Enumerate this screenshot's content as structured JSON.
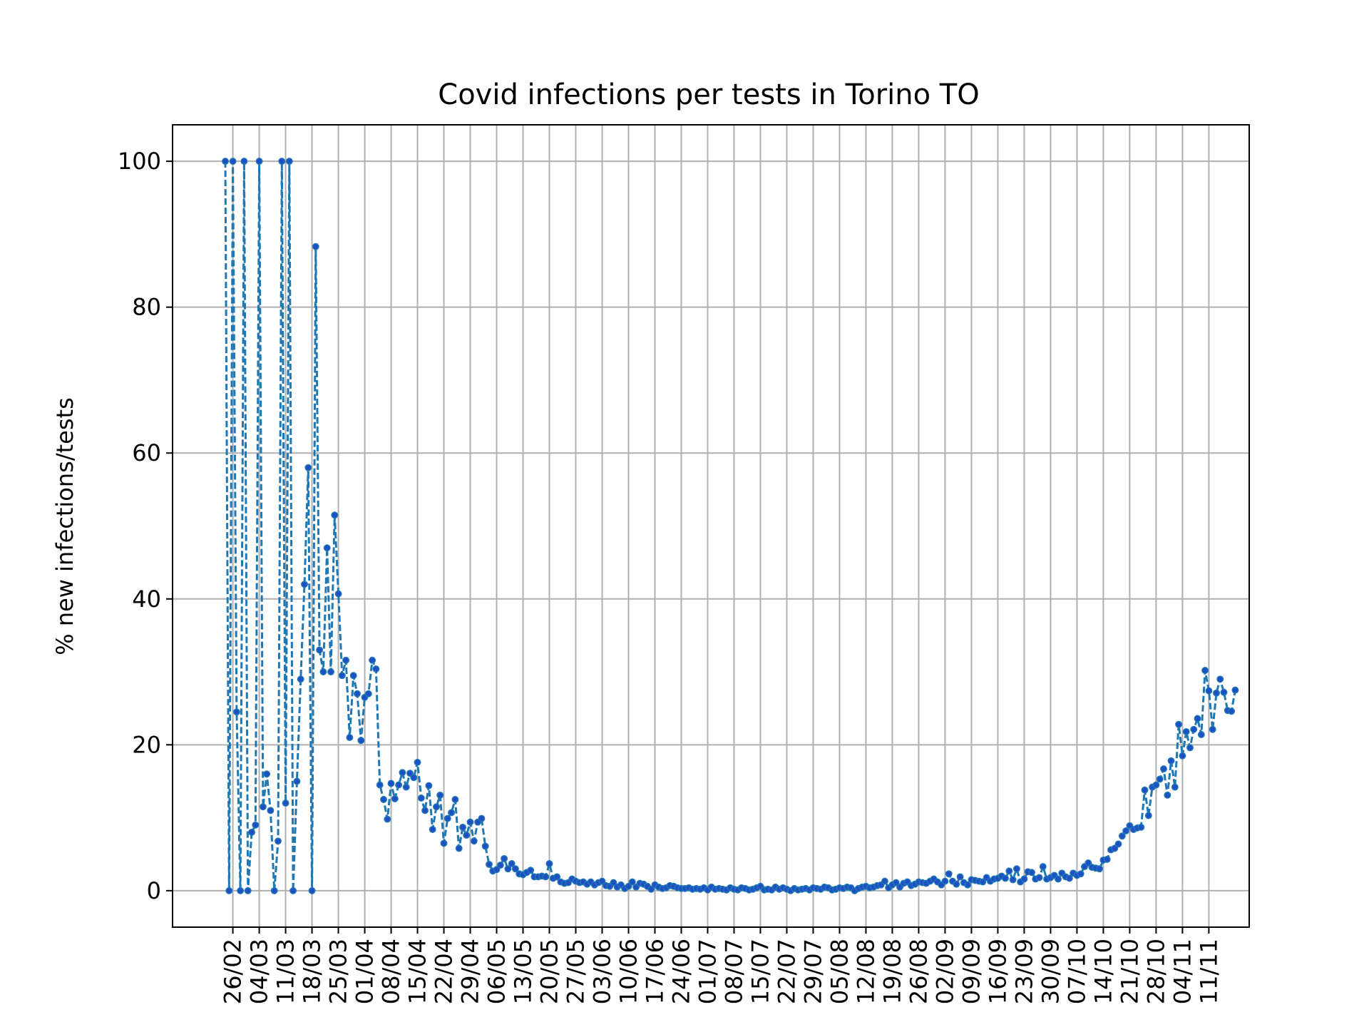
{
  "chart_data": {
    "type": "line",
    "title": "Covid infections per tests in Torino TO",
    "xlabel": "",
    "ylabel": "% new infections/tests",
    "ylim": [
      -5,
      105
    ],
    "yticks": [
      0,
      20,
      40,
      60,
      80,
      100
    ],
    "grid": true,
    "legend": "none",
    "line_style": "dashed",
    "marker": "dot",
    "colors": {
      "line": "#1f77b4",
      "marker": "#1f4fc4",
      "grid": "#b0b0b0"
    },
    "x_start": "2020-02-24",
    "x_tick_labels": [
      "26/02",
      "04/03",
      "11/03",
      "18/03",
      "25/03",
      "01/04",
      "08/04",
      "15/04",
      "22/04",
      "29/04",
      "06/05",
      "13/05",
      "20/05",
      "27/05",
      "03/06",
      "10/06",
      "17/06",
      "24/06",
      "01/07",
      "08/07",
      "15/07",
      "22/07",
      "29/07",
      "05/08",
      "12/08",
      "19/08",
      "26/08",
      "02/09",
      "09/09",
      "16/09",
      "23/09",
      "30/09",
      "07/10",
      "14/10",
      "21/10",
      "28/10",
      "04/11",
      "11/11"
    ],
    "values": [
      100,
      0,
      100,
      24.5,
      0,
      100,
      0,
      8,
      9,
      100,
      11.5,
      16,
      11,
      0,
      6.8,
      100,
      12,
      100,
      0,
      15,
      29,
      42,
      58,
      0,
      88.3,
      33,
      30,
      47,
      30,
      51.5,
      40.7,
      29.5,
      31.6,
      21,
      29.5,
      27,
      20.6,
      26.5,
      27,
      31.6,
      30.4,
      14.5,
      12.5,
      9.8,
      14.7,
      12.6,
      14.5,
      16.2,
      14.2,
      16.1,
      15.5,
      17.6,
      12.7,
      11,
      14.4,
      8.4,
      11.5,
      13.1,
      6.5,
      9.9,
      10.7,
      12.5,
      5.8,
      8.7,
      7.6,
      9.4,
      6.8,
      9.4,
      9.9,
      6.1,
      3.6,
      2.7,
      2.9,
      3.5,
      4.4,
      3,
      3.7,
      3,
      2.3,
      2.2,
      2.5,
      2.8,
      1.9,
      1.9,
      2,
      1.9,
      3.7,
      1.7,
      1.9,
      1.2,
      1,
      1.1,
      1.6,
      1.3,
      1.1,
      1.2,
      0.9,
      1.2,
      0.8,
      1.1,
      1.3,
      0.7,
      0.6,
      1.1,
      0.5,
      0.8,
      0.3,
      0.6,
      1.2,
      0.5,
      1,
      0.9,
      0.6,
      0.2,
      0.8,
      0.5,
      0.3,
      0.4,
      0.7,
      0.6,
      0.4,
      0.3,
      0.3,
      0.4,
      0.2,
      0.3,
      0.2,
      0.4,
      0.1,
      0.5,
      0.2,
      0.3,
      0.2,
      0.1,
      0.4,
      0.2,
      0.1,
      0.4,
      0.3,
      0.1,
      0.2,
      0.4,
      0.6,
      0.1,
      0.2,
      0.1,
      0.5,
      0.2,
      0.4,
      0.2,
      0,
      0.3,
      0.1,
      0.2,
      0.3,
      0.1,
      0.4,
      0.3,
      0.2,
      0.5,
      0.4,
      0.1,
      0.2,
      0.4,
      0.3,
      0.5,
      0.4,
      0,
      0.3,
      0.5,
      0.6,
      0.4,
      0.5,
      0.7,
      0.8,
      1.3,
      0.4,
      0.8,
      1.1,
      0.5,
      1,
      1.2,
      0.7,
      0.9,
      1.2,
      1.1,
      1,
      1.3,
      1.6,
      1.2,
      0.8,
      1.3,
      2.3,
      1.3,
      0.9,
      1.9,
      1.1,
      0.8,
      1.5,
      1.4,
      1.3,
      1.2,
      1.8,
      1.3,
      1.6,
      1.7,
      2,
      1.7,
      2.7,
      1.5,
      3,
      1.2,
      1.6,
      2.6,
      2.5,
      1.6,
      1.8,
      3.3,
      1.6,
      1.8,
      2.1,
      1.6,
      2.4,
      1.9,
      1.7,
      2.4,
      2.1,
      2.3,
      3.3,
      3.8,
      3.2,
      3.1,
      3,
      4.2,
      4.3,
      5.6,
      5.8,
      6.4,
      7.5,
      8.2,
      8.9,
      8.4,
      8.6,
      8.7,
      13.8,
      10.3,
      14.2,
      14.5,
      15.3,
      16.7,
      13.1,
      17.8,
      14.2,
      22.8,
      18.5,
      21.8,
      19.6,
      22.1,
      23.6,
      21.4,
      30.2,
      27.4,
      22.1,
      27.1,
      29,
      27.2,
      24.7,
      24.6,
      27.5
    ]
  }
}
